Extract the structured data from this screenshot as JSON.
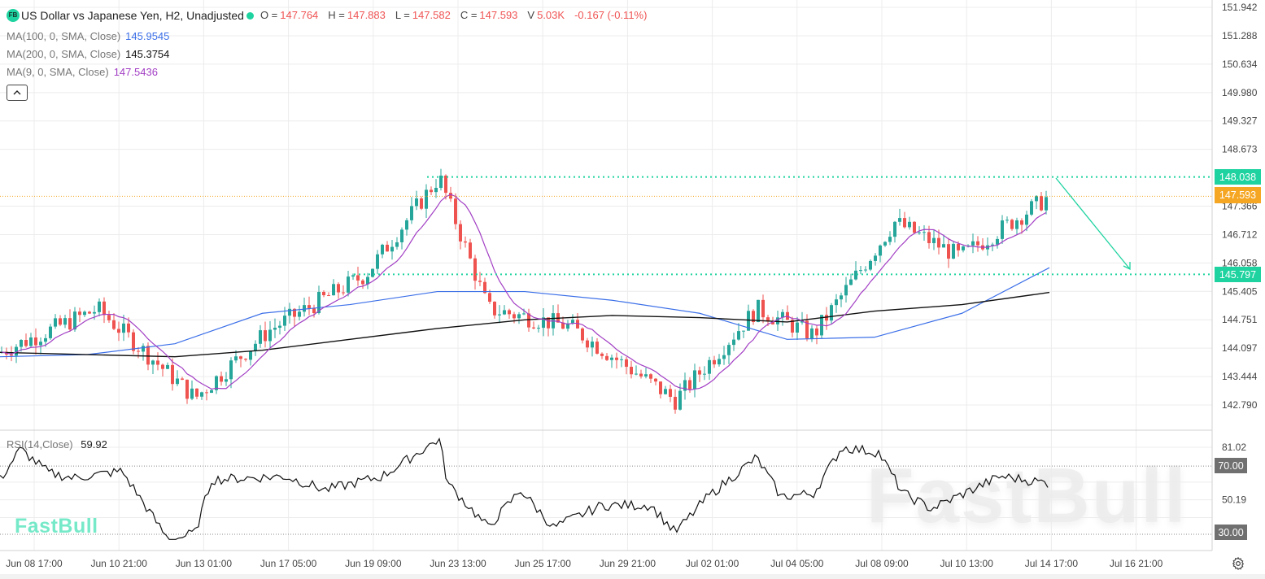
{
  "header": {
    "badge": "FB",
    "title": "US Dollar vs Japanese Yen, H2, Unadjusted",
    "ohlc": [
      {
        "key": "O =",
        "value": "147.764"
      },
      {
        "key": "H =",
        "value": "147.883"
      },
      {
        "key": "L =",
        "value": "147.582"
      },
      {
        "key": "C =",
        "value": "147.593"
      },
      {
        "key": "V",
        "value": "5.03K"
      }
    ],
    "change": "-0.167 (-0.11%)"
  },
  "indicators": [
    {
      "label": "MA(100, 0, SMA, Close)",
      "value": "145.9545",
      "color": "#3b6fe8"
    },
    {
      "label": "MA(200, 0, SMA, Close)",
      "value": "145.3754",
      "color": "#111111"
    },
    {
      "label": "MA(9, 0, SMA, Close)",
      "value": "147.5436",
      "color": "#a23ec4"
    }
  ],
  "rsi": {
    "label": "RSI(14,Close)",
    "value": "59.92"
  },
  "watermark": "FastBull",
  "price_tags": {
    "resistance": "148.038",
    "current": "147.593",
    "support": "145.797",
    "rsi_upper": "70.00",
    "rsi_lower": "30.00"
  },
  "colors": {
    "up": "#26a69a",
    "down": "#ef5350",
    "ma100": "#3b6fe8",
    "ma200": "#111111",
    "ma9": "#a23ec4",
    "level_line": "#1ed3a0",
    "current_price": "#f5a623",
    "rsi_tag": "#707070"
  },
  "chart_data": [
    {
      "type": "candlestick",
      "title": "US Dollar vs Japanese Yen, H2, Unadjusted",
      "xlabel": "",
      "ylabel": "",
      "x_ticks": [
        "Jun 08 17:00",
        "Jun 10 21:00",
        "Jun 13 01:00",
        "Jun 17 05:00",
        "Jun 19 09:00",
        "Jun 23 13:00",
        "Jun 25 17:00",
        "Jun 29 21:00",
        "Jul 02 01:00",
        "Jul 04 05:00",
        "Jul 08 09:00",
        "Jul 10 13:00",
        "Jul 14 17:00",
        "Jul 16 21:00"
      ],
      "y_ticks": [
        "151.942",
        "151.288",
        "150.634",
        "149.980",
        "149.327",
        "148.673",
        "147.366",
        "146.712",
        "146.058",
        "145.405",
        "144.751",
        "144.097",
        "143.444",
        "142.790"
      ],
      "ylim": [
        142.5,
        152.1
      ],
      "close_path": {
        "x": [
          "Jun 08 17:00",
          "Jun 10 21:00",
          "Jun 13 01:00",
          "Jun 17 05:00",
          "Jun 19 09:00",
          "Jun 23 13:00",
          "Jun 25 17:00",
          "Jun 29 21:00",
          "Jul 02 01:00",
          "Jul 04 05:00",
          "Jul 08 09:00",
          "Jul 10 13:00",
          "Jul 14 17:00"
        ],
        "close": [
          144.7,
          145.0,
          143.3,
          144.3,
          145.6,
          146.3,
          145.5,
          144.3,
          143.9,
          144.4,
          146.6,
          146.3,
          147.59
        ]
      },
      "ohlc_last": {
        "open": 147.764,
        "high": 147.883,
        "low": 147.582,
        "close": 147.593,
        "volume": "5.03K"
      },
      "swing_high": 148.038,
      "swing_low": 142.79,
      "series": [
        {
          "name": "MA(100, 0, SMA, Close)",
          "last": 145.9545,
          "path": [
            143.9,
            143.95,
            144.2,
            144.9,
            145.1,
            145.4,
            145.4,
            145.2,
            144.9,
            144.3,
            144.35,
            144.9,
            145.95
          ]
        },
        {
          "name": "MA(200, 0, SMA, Close)",
          "last": 145.3754,
          "path": [
            144.0,
            143.95,
            143.9,
            144.05,
            144.3,
            144.55,
            144.75,
            144.85,
            144.8,
            144.7,
            144.95,
            145.1,
            145.38
          ]
        },
        {
          "name": "MA(9, 0, SMA, Close)",
          "last": 147.5436
        }
      ],
      "annotations": [
        {
          "type": "horizontal_line",
          "style": "dotted",
          "value": 148.038,
          "label": "148.038"
        },
        {
          "type": "horizontal_line",
          "style": "dotted",
          "value": 145.797,
          "label": "145.797"
        },
        {
          "type": "horizontal_line",
          "style": "dotted",
          "value": 147.593,
          "label": "147.593 (current)"
        },
        {
          "type": "arrow",
          "from": {
            "x": "Jul 14 17:00",
            "y": 148.04
          },
          "to": {
            "x": "Jul 16 21:00",
            "y": 145.85
          }
        }
      ]
    },
    {
      "type": "line",
      "title": "RSI(14,Close)",
      "last": 59.92,
      "y_ticks": [
        "81.02",
        "50.19",
        "30.00",
        "70.00"
      ],
      "ylim": [
        25,
        88
      ],
      "levels": [
        70,
        30
      ],
      "x": [
        "Jun 08 17:00",
        "Jun 10 21:00",
        "Jun 13 01:00",
        "Jun 17 05:00",
        "Jun 19 09:00",
        "Jun 23 13:00",
        "Jun 25 17:00",
        "Jun 29 21:00",
        "Jul 02 01:00",
        "Jul 04 05:00",
        "Jul 08 09:00",
        "Jul 10 13:00",
        "Jul 14 17:00"
      ],
      "values": [
        72,
        60,
        30,
        58,
        60,
        84,
        45,
        48,
        30,
        55,
        78,
        45,
        59.92
      ]
    }
  ]
}
